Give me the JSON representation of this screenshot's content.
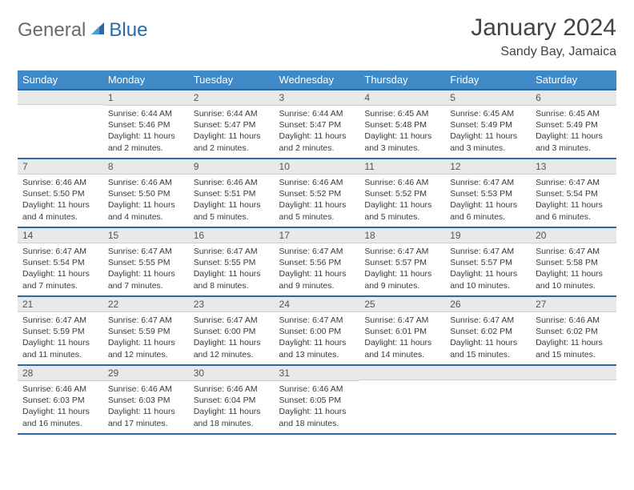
{
  "brand": {
    "word1": "General",
    "word2": "Blue"
  },
  "title": "January 2024",
  "location": "Sandy Bay, Jamaica",
  "colors": {
    "header_bg": "#3e89c6",
    "header_border": "#2b6aa8",
    "daynum_bg": "#e9e9e9",
    "text": "#3a3a3a",
    "logo_gray": "#6a6a6a",
    "logo_blue": "#2b6aa8",
    "white": "#ffffff"
  },
  "weekdays": [
    "Sunday",
    "Monday",
    "Tuesday",
    "Wednesday",
    "Thursday",
    "Friday",
    "Saturday"
  ],
  "weeks": [
    [
      {
        "blank": true
      },
      {
        "n": "1",
        "sunrise": "6:44 AM",
        "sunset": "5:46 PM",
        "daylight": "11 hours and 2 minutes."
      },
      {
        "n": "2",
        "sunrise": "6:44 AM",
        "sunset": "5:47 PM",
        "daylight": "11 hours and 2 minutes."
      },
      {
        "n": "3",
        "sunrise": "6:44 AM",
        "sunset": "5:47 PM",
        "daylight": "11 hours and 2 minutes."
      },
      {
        "n": "4",
        "sunrise": "6:45 AM",
        "sunset": "5:48 PM",
        "daylight": "11 hours and 3 minutes."
      },
      {
        "n": "5",
        "sunrise": "6:45 AM",
        "sunset": "5:49 PM",
        "daylight": "11 hours and 3 minutes."
      },
      {
        "n": "6",
        "sunrise": "6:45 AM",
        "sunset": "5:49 PM",
        "daylight": "11 hours and 3 minutes."
      }
    ],
    [
      {
        "n": "7",
        "sunrise": "6:46 AM",
        "sunset": "5:50 PM",
        "daylight": "11 hours and 4 minutes."
      },
      {
        "n": "8",
        "sunrise": "6:46 AM",
        "sunset": "5:50 PM",
        "daylight": "11 hours and 4 minutes."
      },
      {
        "n": "9",
        "sunrise": "6:46 AM",
        "sunset": "5:51 PM",
        "daylight": "11 hours and 5 minutes."
      },
      {
        "n": "10",
        "sunrise": "6:46 AM",
        "sunset": "5:52 PM",
        "daylight": "11 hours and 5 minutes."
      },
      {
        "n": "11",
        "sunrise": "6:46 AM",
        "sunset": "5:52 PM",
        "daylight": "11 hours and 5 minutes."
      },
      {
        "n": "12",
        "sunrise": "6:47 AM",
        "sunset": "5:53 PM",
        "daylight": "11 hours and 6 minutes."
      },
      {
        "n": "13",
        "sunrise": "6:47 AM",
        "sunset": "5:54 PM",
        "daylight": "11 hours and 6 minutes."
      }
    ],
    [
      {
        "n": "14",
        "sunrise": "6:47 AM",
        "sunset": "5:54 PM",
        "daylight": "11 hours and 7 minutes."
      },
      {
        "n": "15",
        "sunrise": "6:47 AM",
        "sunset": "5:55 PM",
        "daylight": "11 hours and 7 minutes."
      },
      {
        "n": "16",
        "sunrise": "6:47 AM",
        "sunset": "5:55 PM",
        "daylight": "11 hours and 8 minutes."
      },
      {
        "n": "17",
        "sunrise": "6:47 AM",
        "sunset": "5:56 PM",
        "daylight": "11 hours and 9 minutes."
      },
      {
        "n": "18",
        "sunrise": "6:47 AM",
        "sunset": "5:57 PM",
        "daylight": "11 hours and 9 minutes."
      },
      {
        "n": "19",
        "sunrise": "6:47 AM",
        "sunset": "5:57 PM",
        "daylight": "11 hours and 10 minutes."
      },
      {
        "n": "20",
        "sunrise": "6:47 AM",
        "sunset": "5:58 PM",
        "daylight": "11 hours and 10 minutes."
      }
    ],
    [
      {
        "n": "21",
        "sunrise": "6:47 AM",
        "sunset": "5:59 PM",
        "daylight": "11 hours and 11 minutes."
      },
      {
        "n": "22",
        "sunrise": "6:47 AM",
        "sunset": "5:59 PM",
        "daylight": "11 hours and 12 minutes."
      },
      {
        "n": "23",
        "sunrise": "6:47 AM",
        "sunset": "6:00 PM",
        "daylight": "11 hours and 12 minutes."
      },
      {
        "n": "24",
        "sunrise": "6:47 AM",
        "sunset": "6:00 PM",
        "daylight": "11 hours and 13 minutes."
      },
      {
        "n": "25",
        "sunrise": "6:47 AM",
        "sunset": "6:01 PM",
        "daylight": "11 hours and 14 minutes."
      },
      {
        "n": "26",
        "sunrise": "6:47 AM",
        "sunset": "6:02 PM",
        "daylight": "11 hours and 15 minutes."
      },
      {
        "n": "27",
        "sunrise": "6:46 AM",
        "sunset": "6:02 PM",
        "daylight": "11 hours and 15 minutes."
      }
    ],
    [
      {
        "n": "28",
        "sunrise": "6:46 AM",
        "sunset": "6:03 PM",
        "daylight": "11 hours and 16 minutes."
      },
      {
        "n": "29",
        "sunrise": "6:46 AM",
        "sunset": "6:03 PM",
        "daylight": "11 hours and 17 minutes."
      },
      {
        "n": "30",
        "sunrise": "6:46 AM",
        "sunset": "6:04 PM",
        "daylight": "11 hours and 18 minutes."
      },
      {
        "n": "31",
        "sunrise": "6:46 AM",
        "sunset": "6:05 PM",
        "daylight": "11 hours and 18 minutes."
      },
      {
        "blank": true
      },
      {
        "blank": true
      },
      {
        "blank": true
      }
    ]
  ],
  "labels": {
    "sunrise": "Sunrise:",
    "sunset": "Sunset:",
    "daylight": "Daylight:"
  }
}
